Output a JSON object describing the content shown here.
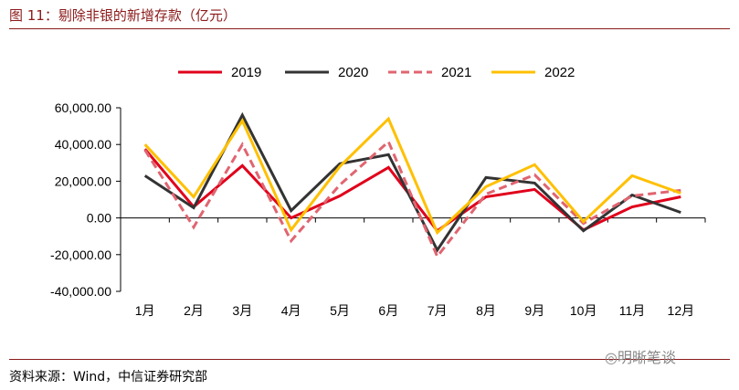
{
  "header": {
    "title": "图 11：剔除非银的新增存款（亿元）"
  },
  "footer": {
    "source": "资料来源：Wind，中信证券研究部",
    "watermark": "明晰笔谈"
  },
  "chart_data": {
    "type": "line",
    "categories": [
      "1月",
      "2月",
      "3月",
      "4月",
      "5月",
      "6月",
      "7月",
      "8月",
      "9月",
      "10月",
      "11月",
      "12月"
    ],
    "ylim": [
      -40000,
      60000
    ],
    "yticks": [
      60000,
      40000,
      20000,
      0,
      -20000,
      -40000
    ],
    "ytick_labels": [
      "60,000.00",
      "40,000.00",
      "20,000.00",
      "0.00",
      "-20,000.00",
      "-40,000.00"
    ],
    "grid": false,
    "legend": "top",
    "series": [
      {
        "name": "2019",
        "color": "#e0001b",
        "dash": "solid",
        "values": [
          37500,
          6000,
          28500,
          0,
          12000,
          27500,
          -7000,
          11500,
          15500,
          -6500,
          6000,
          11500
        ]
      },
      {
        "name": "2020",
        "color": "#333333",
        "dash": "solid",
        "values": [
          23000,
          5500,
          56000,
          4000,
          29500,
          34500,
          -17500,
          22000,
          19000,
          -7000,
          12500,
          3000
        ]
      },
      {
        "name": "2021",
        "color": "#e06570",
        "dash": "dashed",
        "values": [
          37000,
          -5000,
          40000,
          -12500,
          18000,
          41500,
          -21000,
          13000,
          23500,
          -3000,
          12000,
          15000
        ]
      },
      {
        "name": "2022",
        "color": "#ffc000",
        "dash": "solid",
        "values": [
          40000,
          11500,
          53000,
          -6500,
          28000,
          54000,
          -8000,
          17000,
          29000,
          -2000,
          23000,
          13500
        ]
      }
    ]
  }
}
